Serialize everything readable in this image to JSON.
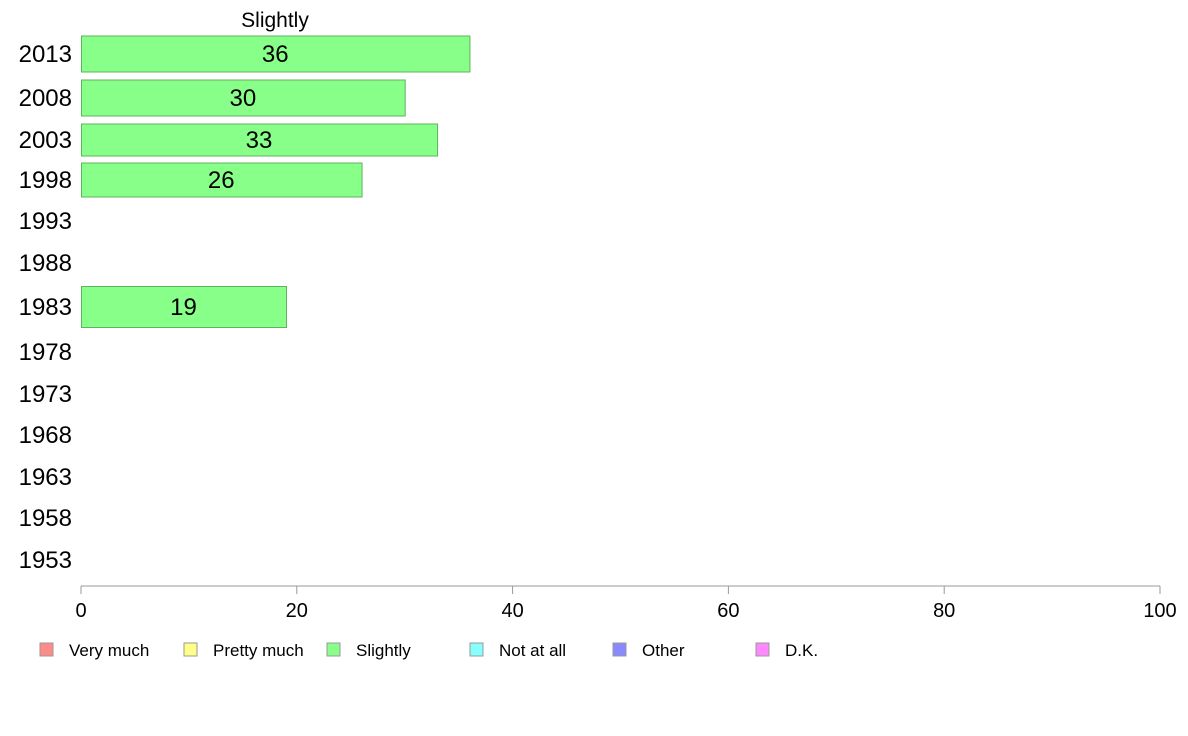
{
  "chart_data": {
    "type": "bar",
    "orientation": "horizontal",
    "title": "Slightly",
    "categories": [
      "2013",
      "2008",
      "2003",
      "1998",
      "1993",
      "1988",
      "1983",
      "1978",
      "1973",
      "1968",
      "1963",
      "1958",
      "1953"
    ],
    "series": [
      {
        "name": "Slightly",
        "values": [
          36,
          30,
          33,
          26,
          null,
          null,
          19,
          null,
          null,
          null,
          null,
          null,
          null
        ]
      }
    ],
    "data_labels": [
      "36",
      "30",
      "33",
      "26",
      "",
      "",
      "19",
      "",
      "",
      "",
      "",
      "",
      ""
    ],
    "xlim": [
      0,
      100
    ],
    "xticks": [
      0,
      20,
      40,
      60,
      80,
      100
    ],
    "grid": false,
    "legend": {
      "placement": "bottom",
      "entries": [
        {
          "label": "Very much",
          "color": "#ff8a8a"
        },
        {
          "label": "Pretty much",
          "color": "#ffff88"
        },
        {
          "label": "Slightly",
          "color": "#88ff88"
        },
        {
          "label": "Not at all",
          "color": "#88ffff"
        },
        {
          "label": "Other",
          "color": "#8888ff"
        },
        {
          "label": "D.K.",
          "color": "#ff88ff"
        }
      ]
    },
    "colors": {
      "bar_fill": "#88ff88",
      "bar_stroke": "#5fb35f",
      "axis": "#999999"
    }
  }
}
